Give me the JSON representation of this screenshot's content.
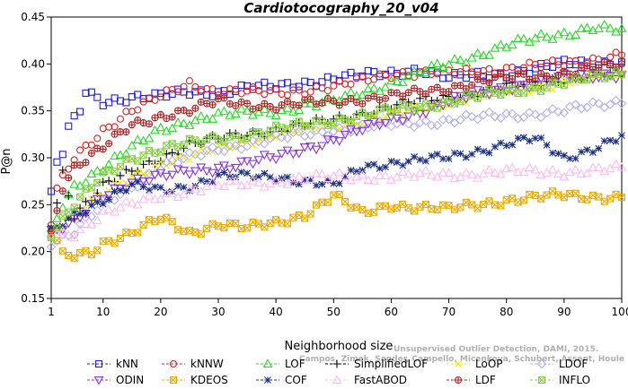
{
  "chart_data": {
    "type": "line",
    "title": "Cardiotocography_20_v04",
    "xlabel": "Neighborhood size",
    "ylabel": "P@n",
    "xlim": [
      1,
      100
    ],
    "ylim": [
      0.15,
      0.45
    ],
    "xticks": [
      1,
      10,
      20,
      30,
      40,
      50,
      60,
      70,
      80,
      90,
      100
    ],
    "yticks": [
      0.15,
      0.2,
      0.25,
      0.3,
      0.35,
      0.4,
      0.45
    ],
    "grid": false,
    "legend_position": "bottom",
    "watermark": "Unsupervised Outlier Detection, DAMI, 2015.",
    "watermark2": "Campos, Zimek, Sander, Campello, Micenkova, Schubert, Assent, Houle",
    "series": [
      {
        "name": "kNN",
        "color": "#1f1fe0",
        "marker": "square",
        "points": [
          [
            1,
            0.26
          ],
          [
            2,
            0.295
          ],
          [
            3,
            0.305
          ],
          [
            4,
            0.33
          ],
          [
            5,
            0.34
          ],
          [
            6,
            0.35
          ],
          [
            7,
            0.37
          ],
          [
            10,
            0.36
          ],
          [
            15,
            0.365
          ],
          [
            20,
            0.365
          ],
          [
            25,
            0.37
          ],
          [
            30,
            0.37
          ],
          [
            35,
            0.375
          ],
          [
            40,
            0.375
          ],
          [
            50,
            0.385
          ],
          [
            60,
            0.39
          ],
          [
            65,
            0.395
          ],
          [
            70,
            0.385
          ],
          [
            80,
            0.39
          ],
          [
            90,
            0.4
          ],
          [
            100,
            0.402
          ]
        ]
      },
      {
        "name": "kNNW",
        "color": "#e02020",
        "marker": "circle",
        "points": [
          [
            1,
            0.23
          ],
          [
            2,
            0.265
          ],
          [
            5,
            0.3
          ],
          [
            10,
            0.33
          ],
          [
            15,
            0.35
          ],
          [
            20,
            0.365
          ],
          [
            25,
            0.38
          ],
          [
            30,
            0.37
          ],
          [
            40,
            0.37
          ],
          [
            50,
            0.375
          ],
          [
            60,
            0.39
          ],
          [
            70,
            0.39
          ],
          [
            80,
            0.395
          ],
          [
            90,
            0.4
          ],
          [
            100,
            0.41
          ]
        ]
      },
      {
        "name": "LOF",
        "color": "#22dd22",
        "marker": "triangle",
        "points": [
          [
            1,
            0.22
          ],
          [
            3,
            0.25
          ],
          [
            5,
            0.27
          ],
          [
            10,
            0.29
          ],
          [
            15,
            0.31
          ],
          [
            20,
            0.33
          ],
          [
            25,
            0.34
          ],
          [
            30,
            0.345
          ],
          [
            40,
            0.35
          ],
          [
            50,
            0.36
          ],
          [
            60,
            0.38
          ],
          [
            65,
            0.39
          ],
          [
            70,
            0.4
          ],
          [
            80,
            0.42
          ],
          [
            90,
            0.432
          ],
          [
            95,
            0.44
          ],
          [
            100,
            0.435
          ]
        ]
      },
      {
        "name": "SimplifiedLOF",
        "color": "#000000",
        "marker": "plus",
        "points": [
          [
            1,
            0.22
          ],
          [
            3,
            0.285
          ],
          [
            5,
            0.24
          ],
          [
            10,
            0.27
          ],
          [
            15,
            0.285
          ],
          [
            20,
            0.3
          ],
          [
            25,
            0.315
          ],
          [
            30,
            0.32
          ],
          [
            40,
            0.33
          ],
          [
            50,
            0.34
          ],
          [
            60,
            0.355
          ],
          [
            70,
            0.365
          ],
          [
            80,
            0.375
          ],
          [
            90,
            0.385
          ],
          [
            100,
            0.39
          ]
        ]
      },
      {
        "name": "LoOP",
        "color": "#eeee00",
        "marker": "x",
        "points": [
          [
            1,
            0.22
          ],
          [
            5,
            0.24
          ],
          [
            10,
            0.26
          ],
          [
            15,
            0.28
          ],
          [
            20,
            0.295
          ],
          [
            25,
            0.3
          ],
          [
            30,
            0.31
          ],
          [
            40,
            0.325
          ],
          [
            50,
            0.335
          ],
          [
            60,
            0.345
          ],
          [
            70,
            0.36
          ],
          [
            80,
            0.37
          ],
          [
            90,
            0.38
          ],
          [
            100,
            0.39
          ]
        ]
      },
      {
        "name": "LDOF",
        "color": "#b0b0ee",
        "marker": "diamond",
        "points": [
          [
            1,
            0.21
          ],
          [
            5,
            0.22
          ],
          [
            10,
            0.25
          ],
          [
            15,
            0.27
          ],
          [
            20,
            0.29
          ],
          [
            30,
            0.31
          ],
          [
            40,
            0.32
          ],
          [
            50,
            0.33
          ],
          [
            60,
            0.335
          ],
          [
            70,
            0.34
          ],
          [
            80,
            0.345
          ],
          [
            90,
            0.35
          ],
          [
            100,
            0.36
          ]
        ]
      },
      {
        "name": "ODIN",
        "color": "#8833dd",
        "marker": "triangle-down",
        "points": [
          [
            1,
            0.22
          ],
          [
            5,
            0.23
          ],
          [
            10,
            0.26
          ],
          [
            15,
            0.275
          ],
          [
            20,
            0.28
          ],
          [
            25,
            0.285
          ],
          [
            30,
            0.29
          ],
          [
            40,
            0.3
          ],
          [
            50,
            0.32
          ],
          [
            60,
            0.34
          ],
          [
            70,
            0.36
          ],
          [
            80,
            0.375
          ],
          [
            90,
            0.385
          ],
          [
            100,
            0.39
          ]
        ]
      },
      {
        "name": "KDEOS",
        "color": "#eeaa00",
        "marker": "square-x",
        "points": [
          [
            1,
            0.22
          ],
          [
            2,
            0.21
          ],
          [
            3,
            0.195
          ],
          [
            5,
            0.195
          ],
          [
            8,
            0.2
          ],
          [
            10,
            0.21
          ],
          [
            15,
            0.22
          ],
          [
            20,
            0.235
          ],
          [
            25,
            0.22
          ],
          [
            30,
            0.23
          ],
          [
            35,
            0.225
          ],
          [
            40,
            0.23
          ],
          [
            45,
            0.24
          ],
          [
            50,
            0.26
          ],
          [
            55,
            0.24
          ],
          [
            60,
            0.25
          ],
          [
            70,
            0.245
          ],
          [
            80,
            0.255
          ],
          [
            90,
            0.26
          ],
          [
            100,
            0.258
          ]
        ]
      },
      {
        "name": "COF",
        "color": "#1a2f80",
        "marker": "asterisk",
        "points": [
          [
            1,
            0.22
          ],
          [
            5,
            0.24
          ],
          [
            10,
            0.255
          ],
          [
            15,
            0.27
          ],
          [
            20,
            0.265
          ],
          [
            25,
            0.27
          ],
          [
            30,
            0.28
          ],
          [
            40,
            0.28
          ],
          [
            50,
            0.27
          ],
          [
            55,
            0.29
          ],
          [
            60,
            0.295
          ],
          [
            70,
            0.3
          ],
          [
            80,
            0.315
          ],
          [
            85,
            0.32
          ],
          [
            90,
            0.3
          ],
          [
            95,
            0.31
          ],
          [
            100,
            0.322
          ]
        ]
      },
      {
        "name": "FastABOD",
        "color": "#ffbbee",
        "marker": "triangle",
        "points": [
          [
            1,
            0.22
          ],
          [
            5,
            0.22
          ],
          [
            10,
            0.24
          ],
          [
            15,
            0.25
          ],
          [
            20,
            0.26
          ],
          [
            30,
            0.27
          ],
          [
            40,
            0.275
          ],
          [
            50,
            0.28
          ],
          [
            60,
            0.28
          ],
          [
            70,
            0.282
          ],
          [
            80,
            0.285
          ],
          [
            90,
            0.285
          ],
          [
            100,
            0.288
          ]
        ]
      },
      {
        "name": "LDF",
        "color": "#aa2222",
        "marker": "circle-plus",
        "points": [
          [
            1,
            0.22
          ],
          [
            3,
            0.27
          ],
          [
            5,
            0.29
          ],
          [
            10,
            0.31
          ],
          [
            15,
            0.335
          ],
          [
            20,
            0.345
          ],
          [
            25,
            0.35
          ],
          [
            30,
            0.36
          ],
          [
            40,
            0.355
          ],
          [
            50,
            0.36
          ],
          [
            60,
            0.365
          ],
          [
            70,
            0.375
          ],
          [
            80,
            0.385
          ],
          [
            90,
            0.39
          ],
          [
            100,
            0.4
          ]
        ]
      },
      {
        "name": "INFLO",
        "color": "#88cc44",
        "marker": "square-x",
        "points": [
          [
            1,
            0.22
          ],
          [
            5,
            0.25
          ],
          [
            10,
            0.28
          ],
          [
            15,
            0.3
          ],
          [
            20,
            0.31
          ],
          [
            30,
            0.32
          ],
          [
            40,
            0.33
          ],
          [
            50,
            0.34
          ],
          [
            60,
            0.35
          ],
          [
            70,
            0.36
          ],
          [
            80,
            0.37
          ],
          [
            90,
            0.38
          ],
          [
            100,
            0.39
          ]
        ]
      }
    ]
  }
}
